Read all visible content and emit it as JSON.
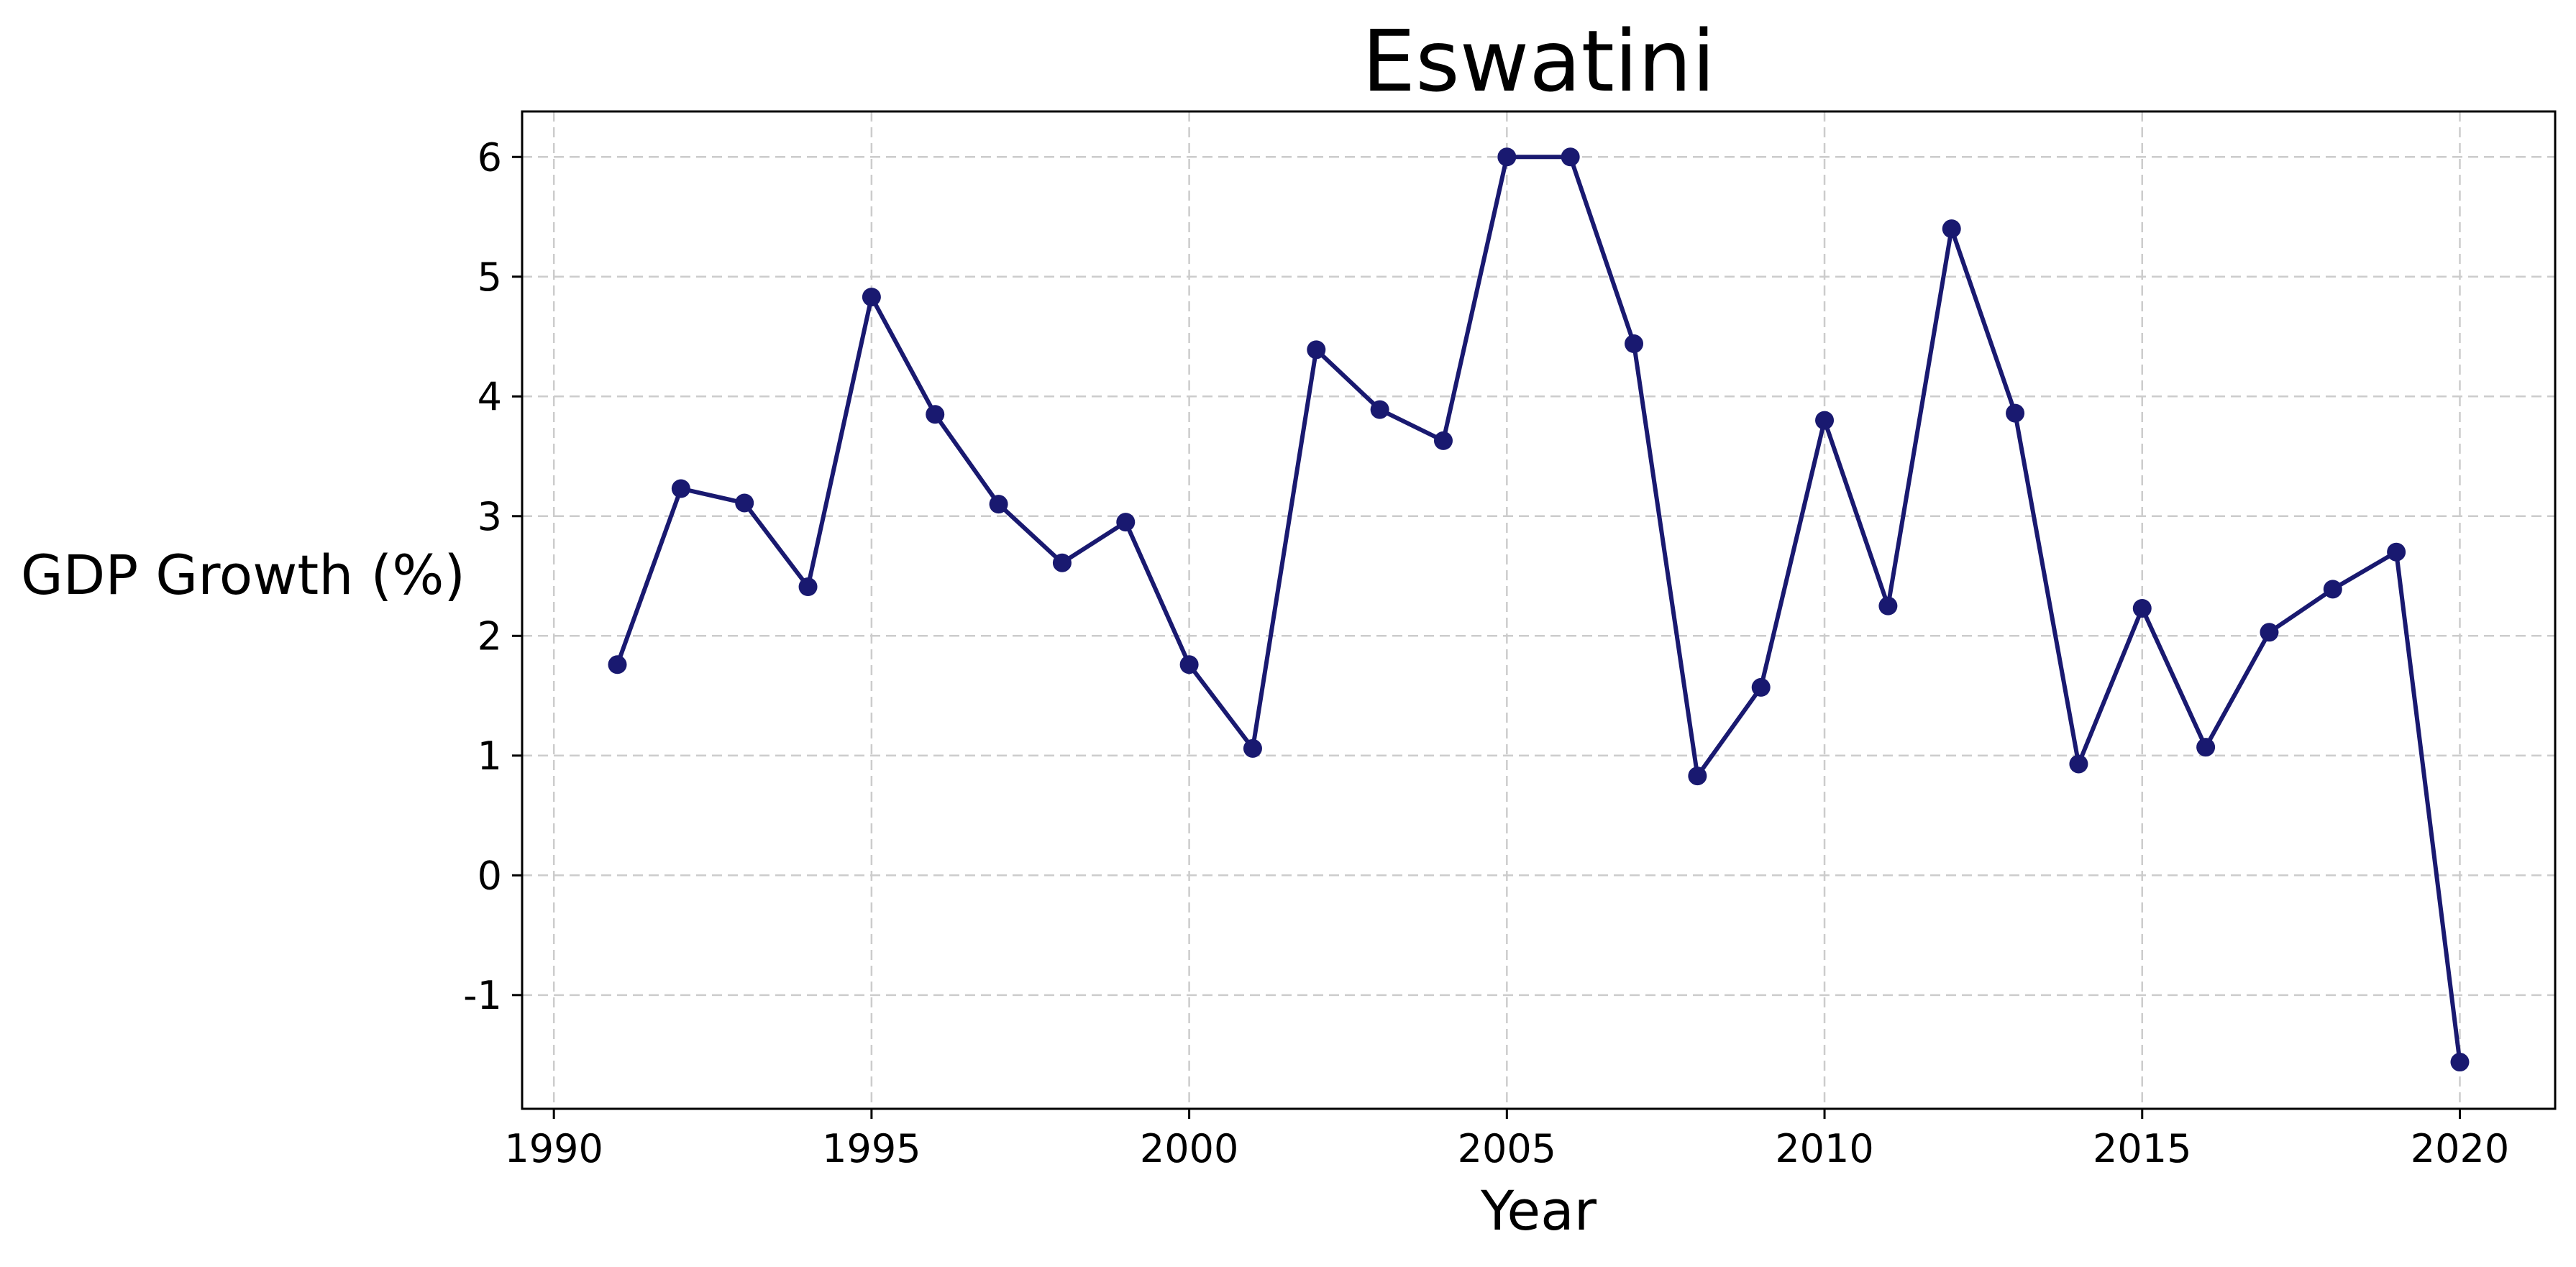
{
  "chart_data": {
    "type": "line",
    "title": "Eswatini",
    "xlabel": "Year",
    "ylabel": "GDP Growth (%)",
    "xlim": [
      1989.5,
      2021.5
    ],
    "ylim": [
      -1.95,
      6.38
    ],
    "x_ticks": [
      1990,
      1995,
      2000,
      2005,
      2010,
      2015,
      2020
    ],
    "y_ticks": [
      -1,
      0,
      1,
      2,
      3,
      4,
      5,
      6
    ],
    "grid": true,
    "legend": null,
    "colors": {
      "line": "#191970",
      "marker": "#191970",
      "grid": "#cccccc",
      "frame": "#000000"
    },
    "series": [
      {
        "x": [
          1991,
          1992,
          1993,
          1994,
          1995,
          1996,
          1997,
          1998,
          1999,
          2000,
          2001,
          2002,
          2003,
          2004,
          2005,
          2006,
          2007,
          2008,
          2009,
          2010,
          2011,
          2012,
          2013,
          2014,
          2015,
          2016,
          2017,
          2018,
          2019,
          2020
        ],
        "values": [
          1.76,
          3.23,
          3.11,
          2.41,
          4.83,
          3.85,
          3.1,
          2.61,
          2.95,
          1.76,
          1.06,
          4.39,
          3.89,
          3.63,
          6.0,
          6.0,
          4.44,
          0.83,
          1.57,
          3.8,
          2.25,
          5.4,
          3.86,
          0.93,
          2.23,
          1.07,
          2.03,
          2.39,
          2.7,
          -1.56
        ]
      }
    ]
  }
}
